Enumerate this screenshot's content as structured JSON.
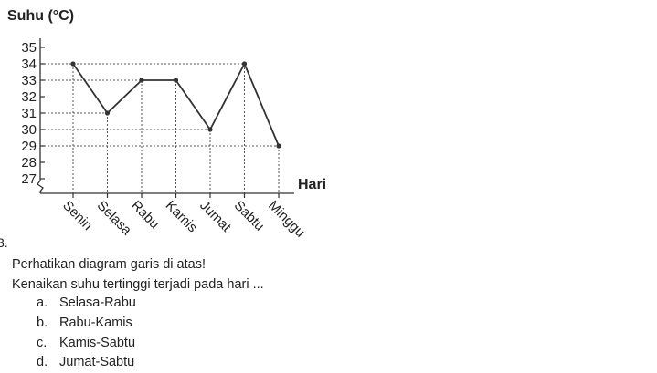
{
  "question": {
    "number": "3.",
    "instruction": "Perhatikan diagram garis di atas!",
    "prompt": "Kenaikan suhu tertinggi terjadi pada hari ...",
    "options": [
      {
        "letter": "a.",
        "text": "Selasa-Rabu"
      },
      {
        "letter": "b.",
        "text": "Rabu-Kamis"
      },
      {
        "letter": "c.",
        "text": "Kamis-Sabtu"
      },
      {
        "letter": "d.",
        "text": "Jumat-Sabtu"
      }
    ]
  },
  "chart_data": {
    "type": "line",
    "title": "",
    "ylabel": "Suhu (°C)",
    "xlabel": "Hari",
    "categories": [
      "Senin",
      "Selasa",
      "Rabu",
      "Kamis",
      "Jumat",
      "Sabtu",
      "Minggu"
    ],
    "values": [
      34,
      31,
      33,
      33,
      30,
      34,
      29
    ],
    "yticks": [
      27,
      28,
      29,
      30,
      31,
      32,
      33,
      34,
      35
    ],
    "ylim": [
      27,
      35
    ],
    "axis_break": true,
    "guide_lines": "dotted",
    "colors": {
      "line": "#333333",
      "guides": "#555555",
      "text": "#222222"
    }
  }
}
